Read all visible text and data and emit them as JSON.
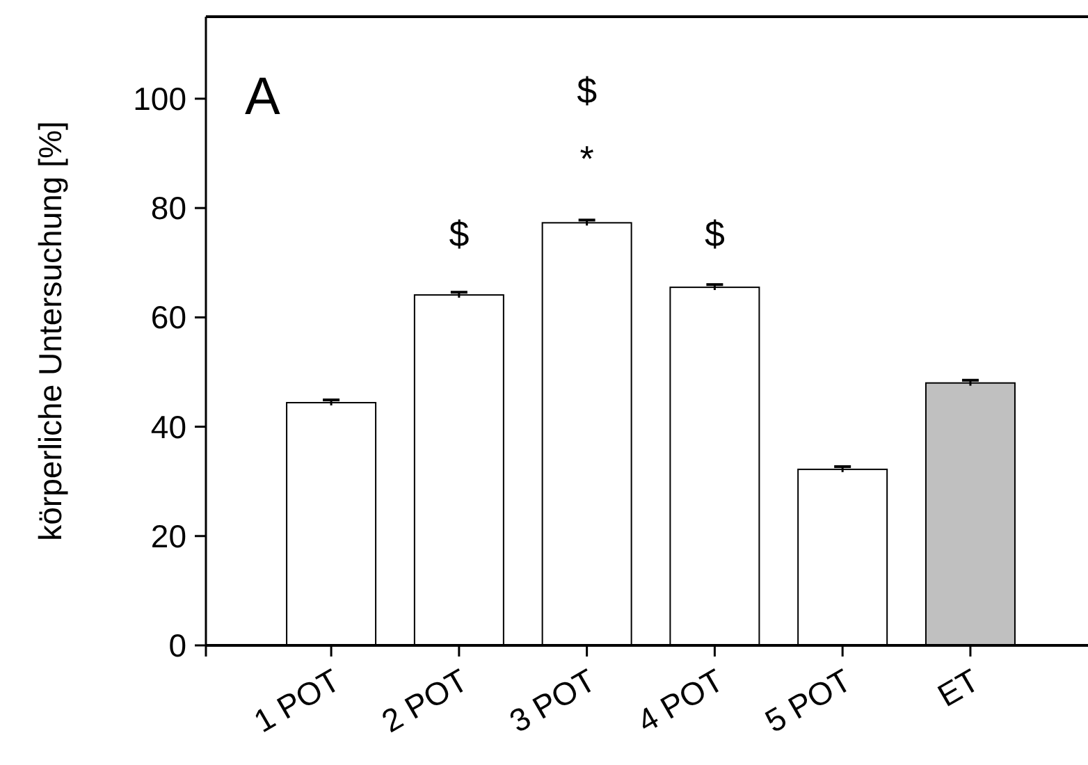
{
  "chart_data": {
    "type": "bar",
    "ylabel": "körperliche Untersuchung [%]",
    "categories": [
      "1 POT",
      "2 POT",
      "3 POT",
      "4 POT",
      "5 POT",
      "ET"
    ],
    "values": [
      44.4,
      64.1,
      77.3,
      65.5,
      32.2,
      48.0
    ],
    "colors": [
      "#ffffff",
      "#ffffff",
      "#ffffff",
      "#ffffff",
      "#ffffff",
      "#c0c0c0"
    ],
    "errors": [
      0.5,
      0.5,
      0.5,
      0.5,
      0.5,
      0.5
    ],
    "ylim": [
      0,
      115
    ],
    "yticks": [
      0,
      20,
      40,
      60,
      80,
      100
    ],
    "grid": false,
    "annotations": [
      "A",
      "$",
      "*",
      "$",
      "$"
    ]
  }
}
